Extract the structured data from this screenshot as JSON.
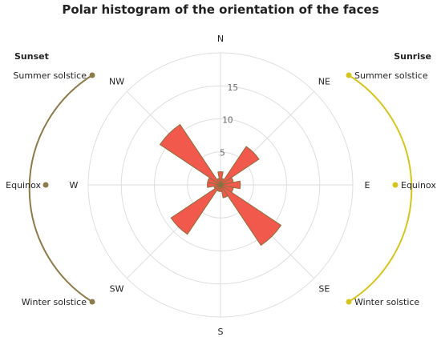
{
  "chart_data": {
    "type": "polar-histogram",
    "title": "Polar histogram of the orientation of the faces",
    "directions": [
      "N",
      "NE",
      "E",
      "SE",
      "S",
      "SW",
      "W",
      "NW"
    ],
    "radial_ticks": [
      5,
      10,
      15
    ],
    "rmax": 20,
    "bin_width_deg": 22.5,
    "bars": [
      {
        "angle": 0,
        "value": 2
      },
      {
        "angle": 22.5,
        "value": 1
      },
      {
        "angle": 45,
        "value": 7
      },
      {
        "angle": 67.5,
        "value": 2
      },
      {
        "angle": 90,
        "value": 3
      },
      {
        "angle": 112.5,
        "value": 2
      },
      {
        "angle": 135,
        "value": 11
      },
      {
        "angle": 157.5,
        "value": 2
      },
      {
        "angle": 180,
        "value": 1
      },
      {
        "angle": 202.5,
        "value": 1
      },
      {
        "angle": 225,
        "value": 9
      },
      {
        "angle": 247.5,
        "value": 1
      },
      {
        "angle": 270,
        "value": 2
      },
      {
        "angle": 292.5,
        "value": 2
      },
      {
        "angle": 315,
        "value": 11
      },
      {
        "angle": 337.5,
        "value": 1
      }
    ],
    "bar_color": "#f0594c",
    "bar_edge_color": "#8a7040",
    "grid": true,
    "sunset": {
      "title": "Sunset",
      "color": "#8b7a4a",
      "labels": [
        "Summer solstice",
        "Equinox",
        "Winter solstice"
      ]
    },
    "sunrise": {
      "title": "Sunrise",
      "color": "#d4c41e",
      "labels": [
        "Summer solstice",
        "Equinox",
        "Winter solstice"
      ]
    }
  }
}
